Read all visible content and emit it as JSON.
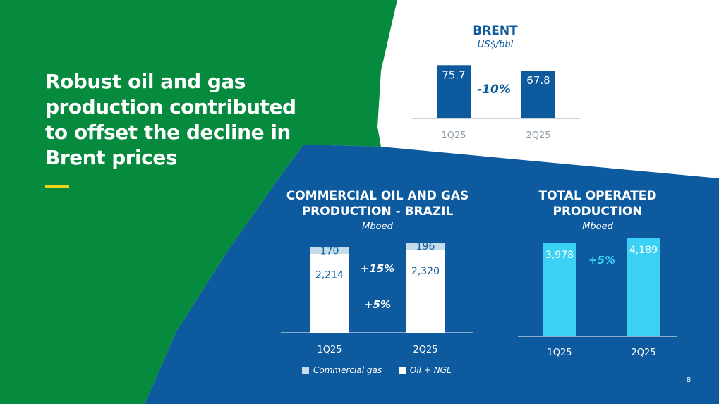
{
  "headline": "Robust oil and gas production contributed to offset the decline in Brent prices",
  "page_number": "8",
  "colors": {
    "green": "#058a3e",
    "blue": "#0d5a9e",
    "cyan": "#3ad1f5",
    "accent_yellow": "#f2d31b",
    "gas_light": "#c5dcea"
  },
  "chart_data": [
    {
      "id": "brent",
      "type": "bar",
      "title": "BRENT",
      "subtitle": "US$/bbl",
      "categories": [
        "1Q25",
        "2Q25"
      ],
      "values": [
        75.7,
        67.8
      ],
      "labels": [
        "75.7",
        "67.8"
      ],
      "change_label": "-10%",
      "ylim": [
        0,
        80
      ]
    },
    {
      "id": "commercial",
      "type": "bar",
      "stacked": true,
      "title": "COMMERCIAL OIL AND GAS PRODUCTION - BRAZIL",
      "subtitle": "Mboed",
      "categories": [
        "1Q25",
        "2Q25"
      ],
      "series": [
        {
          "name": "Oil + NGL",
          "values": [
            2214,
            2320
          ],
          "labels": [
            "2,214",
            "2,320"
          ]
        },
        {
          "name": "Commercial gas",
          "values": [
            170,
            196
          ],
          "labels": [
            "170",
            "196"
          ]
        }
      ],
      "change_labels": {
        "Commercial gas": "+15%",
        "Oil + NGL": "+5%"
      },
      "ylim": [
        0,
        2600
      ],
      "legend": [
        "Commercial gas",
        "Oil + NGL"
      ]
    },
    {
      "id": "total",
      "type": "bar",
      "title": "TOTAL OPERATED PRODUCTION",
      "subtitle": "Mboed",
      "categories": [
        "1Q25",
        "2Q25"
      ],
      "values": [
        3978,
        4189
      ],
      "labels": [
        "3,978",
        "4,189"
      ],
      "change_label": "+5%",
      "ylim": [
        0,
        4250
      ]
    }
  ]
}
